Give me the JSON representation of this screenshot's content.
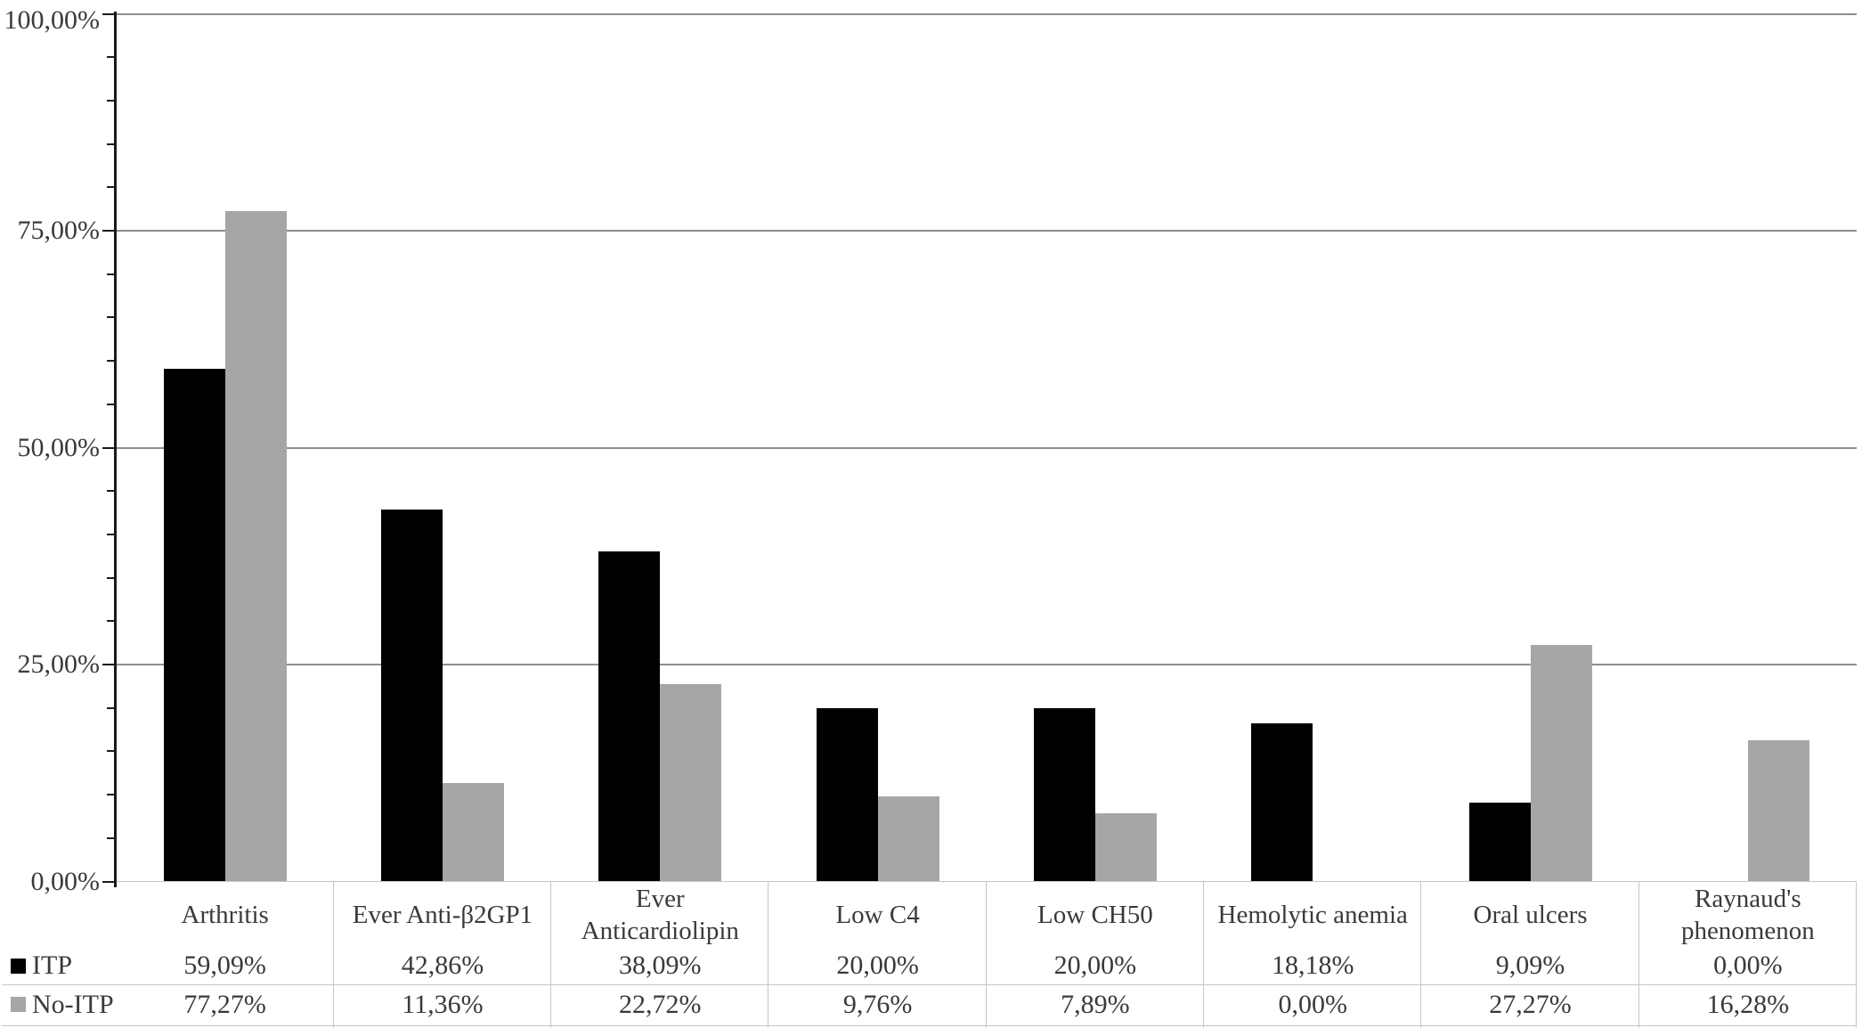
{
  "chart_data": {
    "type": "bar",
    "title": "",
    "xlabel": "",
    "ylabel": "",
    "categories": [
      "Arthritis",
      "Ever Anti-β2GP1",
      "Ever Anticardiolipin",
      "Low C4",
      "Low CH50",
      "Hemolytic anemia",
      "Oral ulcers",
      "Raynaud's phenomenon"
    ],
    "series": [
      {
        "name": "ITP",
        "color": "#000000",
        "values": [
          59.09,
          42.86,
          38.09,
          20.0,
          20.0,
          18.18,
          9.09,
          0.0
        ],
        "labels": [
          "59,09%",
          "42,86%",
          "38,09%",
          "20,00%",
          "20,00%",
          "18,18%",
          "9,09%",
          "0,00%"
        ]
      },
      {
        "name": "No-ITP",
        "color": "#a6a6a6",
        "values": [
          77.27,
          11.36,
          22.72,
          9.76,
          7.89,
          0.0,
          27.27,
          16.28
        ],
        "labels": [
          "77,27%",
          "11,36%",
          "22,72%",
          "9,76%",
          "7,89%",
          "0,00%",
          "27,27%",
          "16,28%"
        ]
      }
    ],
    "ylim": [
      0,
      100
    ],
    "y_ticks": [
      {
        "value": 0,
        "label": "0,00%"
      },
      {
        "value": 25,
        "label": "25,00%"
      },
      {
        "value": 50,
        "label": "50,00%"
      },
      {
        "value": 75,
        "label": "75,00%"
      },
      {
        "value": 100,
        "label": "100,00%"
      }
    ],
    "minor_tick_step": 5,
    "grid": true,
    "legend_position": "data-table-left",
    "data_table_shown": true
  },
  "colors": {
    "background": "#ffffff",
    "bar_itp": "#000000",
    "bar_no_itp": "#a6a6a6",
    "gridline": "#8f8f8f",
    "axis": "#1a1a1a",
    "table_border": "#c6c6c6",
    "text": "#3a3a3a"
  }
}
